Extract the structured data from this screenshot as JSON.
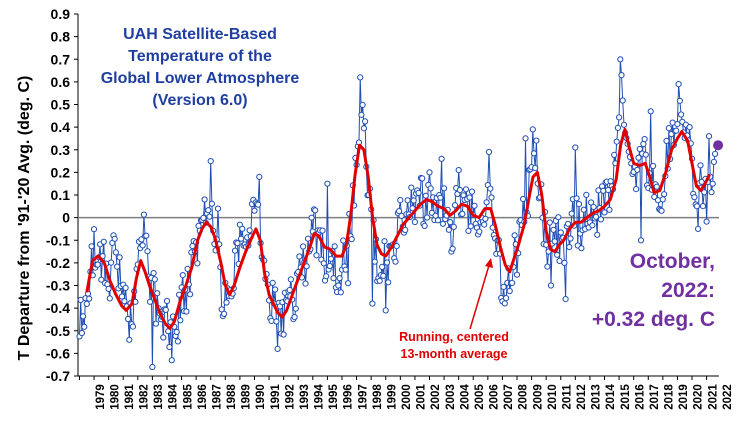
{
  "chart_data": {
    "type": "line",
    "title": [
      "UAH Satellite-Based",
      "Temperature of the",
      "Global Lower Atmosphere",
      "(Version 6.0)"
    ],
    "xlabel": "",
    "ylabel": "T Departure from '91-'20 Avg. (deg. C)",
    "ylim": [
      -0.7,
      0.9
    ],
    "xlim": [
      1978.9,
      2022.85
    ],
    "yticks": [
      -0.7,
      -0.6,
      -0.5,
      -0.4,
      -0.3,
      -0.2,
      -0.1,
      0,
      0.1,
      0.2,
      0.3,
      0.4,
      0.5,
      0.6,
      0.7,
      0.8,
      0.9
    ],
    "ytick_labels": [
      "-0.7",
      "-0.6",
      "-0.5",
      "-0.4",
      "-0.3",
      "-0.2",
      "-0.1",
      "0",
      "0.1",
      "0.2",
      "0.3",
      "0.4",
      "0.5",
      "0.6",
      "0.7",
      "0.8",
      "0.9"
    ],
    "xtick_labels": [
      "1979",
      "1980",
      "1981",
      "1982",
      "1983",
      "1984",
      "1985",
      "1986",
      "1987",
      "1988",
      "1989",
      "1990",
      "1991",
      "1992",
      "1993",
      "1994",
      "1995",
      "1996",
      "1997",
      "1998",
      "1999",
      "2000",
      "2001",
      "2002",
      "2003",
      "2004",
      "2005",
      "2006",
      "2007",
      "2008",
      "2009",
      "2010",
      "2011",
      "2012",
      "2013",
      "2014",
      "2015",
      "2016",
      "2017",
      "2018",
      "2019",
      "2020",
      "2021",
      "2022"
    ],
    "grid": false,
    "zero_line": true,
    "colors": {
      "monthly": "#1f4fb4",
      "marker_fill": "#ffffff",
      "running": "#e00000",
      "latest": "#7030a0",
      "title": "#1f3fa0",
      "zero_line": "#7f7f7f"
    },
    "monthly_anchors": [
      [
        1979.0,
        -0.45
      ],
      [
        1979.4,
        -0.38
      ],
      [
        1979.8,
        -0.2
      ],
      [
        1980.2,
        -0.1
      ],
      [
        1980.6,
        -0.2
      ],
      [
        1981.0,
        -0.28
      ],
      [
        1981.4,
        -0.15
      ],
      [
        1981.8,
        -0.25
      ],
      [
        1982.2,
        -0.38
      ],
      [
        1982.6,
        -0.5
      ],
      [
        1983.0,
        -0.2
      ],
      [
        1983.3,
        0.0
      ],
      [
        1983.7,
        -0.25
      ],
      [
        1984.1,
        -0.35
      ],
      [
        1984.6,
        -0.5
      ],
      [
        1985.0,
        -0.45
      ],
      [
        1985.5,
        -0.5
      ],
      [
        1986.0,
        -0.38
      ],
      [
        1986.5,
        -0.28
      ],
      [
        1987.0,
        -0.15
      ],
      [
        1987.5,
        -0.05
      ],
      [
        1987.8,
        0.05
      ],
      [
        1988.1,
        0.0
      ],
      [
        1988.5,
        -0.15
      ],
      [
        1988.9,
        -0.4
      ],
      [
        1989.4,
        -0.3
      ],
      [
        1989.8,
        -0.2
      ],
      [
        1990.2,
        -0.05
      ],
      [
        1990.6,
        -0.1
      ],
      [
        1991.0,
        0.05
      ],
      [
        1991.4,
        -0.05
      ],
      [
        1991.8,
        -0.25
      ],
      [
        1992.3,
        -0.4
      ],
      [
        1992.8,
        -0.45
      ],
      [
        1993.2,
        -0.42
      ],
      [
        1993.7,
        -0.35
      ],
      [
        1994.2,
        -0.25
      ],
      [
        1994.7,
        -0.15
      ],
      [
        1995.1,
        -0.05
      ],
      [
        1995.5,
        -0.1
      ],
      [
        1995.9,
        -0.2
      ],
      [
        1996.3,
        -0.15
      ],
      [
        1996.8,
        -0.25
      ],
      [
        1997.2,
        -0.15
      ],
      [
        1997.7,
        0.0
      ],
      [
        1998.0,
        0.3
      ],
      [
        1998.3,
        0.55
      ],
      [
        1998.7,
        0.25
      ],
      [
        1999.0,
        -0.05
      ],
      [
        1999.4,
        -0.2
      ],
      [
        1999.8,
        -0.15
      ],
      [
        2000.2,
        -0.2
      ],
      [
        2000.6,
        -0.12
      ],
      [
        2001.0,
        -0.02
      ],
      [
        2001.5,
        0.05
      ],
      [
        2001.9,
        0.08
      ],
      [
        2002.3,
        0.12
      ],
      [
        2002.8,
        0.05
      ],
      [
        2003.2,
        0.1
      ],
      [
        2003.6,
        0.05
      ],
      [
        2004.0,
        0.08
      ],
      [
        2004.5,
        -0.05
      ],
      [
        2004.9,
        0.05
      ],
      [
        2005.3,
        0.1
      ],
      [
        2005.8,
        0.02
      ],
      [
        2006.2,
        -0.02
      ],
      [
        2006.7,
        0.05
      ],
      [
        2007.1,
        0.15
      ],
      [
        2007.5,
        -0.05
      ],
      [
        2007.9,
        -0.25
      ],
      [
        2008.2,
        -0.32
      ],
      [
        2008.6,
        -0.2
      ],
      [
        2009.0,
        -0.15
      ],
      [
        2009.5,
        0.05
      ],
      [
        2009.9,
        0.15
      ],
      [
        2010.2,
        0.3
      ],
      [
        2010.6,
        0.12
      ],
      [
        2011.0,
        -0.1
      ],
      [
        2011.4,
        -0.15
      ],
      [
        2011.8,
        -0.1
      ],
      [
        2012.2,
        -0.15
      ],
      [
        2012.6,
        -0.05
      ],
      [
        2013.0,
        0.0
      ],
      [
        2013.5,
        -0.05
      ],
      [
        2013.9,
        0.05
      ],
      [
        2014.3,
        0.0
      ],
      [
        2014.7,
        0.05
      ],
      [
        2015.1,
        0.1
      ],
      [
        2015.5,
        0.15
      ],
      [
        2015.9,
        0.3
      ],
      [
        2016.2,
        0.65
      ],
      [
        2016.5,
        0.35
      ],
      [
        2016.9,
        0.25
      ],
      [
        2017.2,
        0.2
      ],
      [
        2017.6,
        0.3
      ],
      [
        2018.0,
        0.2
      ],
      [
        2018.4,
        0.12
      ],
      [
        2018.8,
        0.1
      ],
      [
        2019.2,
        0.25
      ],
      [
        2019.6,
        0.4
      ],
      [
        2019.9,
        0.35
      ],
      [
        2020.2,
        0.5
      ],
      [
        2020.5,
        0.38
      ],
      [
        2020.9,
        0.35
      ],
      [
        2021.2,
        0.05
      ],
      [
        2021.5,
        0.15
      ],
      [
        2021.8,
        0.12
      ],
      [
        2022.1,
        0.05
      ],
      [
        2022.5,
        0.25
      ],
      [
        2022.75,
        0.3
      ]
    ],
    "spikes": [
      [
        1982.4,
        -0.54
      ],
      [
        1984.0,
        -0.66
      ],
      [
        1985.3,
        -0.63
      ],
      [
        1988.0,
        0.25
      ],
      [
        1988.5,
        0.04
      ],
      [
        1991.3,
        0.18
      ],
      [
        1992.6,
        -0.58
      ],
      [
        1996.0,
        0.15
      ],
      [
        1997.4,
        -0.29
      ],
      [
        1998.25,
        0.62
      ],
      [
        1999.1,
        -0.38
      ],
      [
        2000.0,
        -0.41
      ],
      [
        2003.0,
        0.2
      ],
      [
        2003.8,
        0.26
      ],
      [
        2004.5,
        -0.15
      ],
      [
        2005.0,
        0.21
      ],
      [
        2006.5,
        -0.02
      ],
      [
        2007.05,
        0.29
      ],
      [
        2008.0,
        -0.37
      ],
      [
        2009.6,
        0.35
      ],
      [
        2010.1,
        0.39
      ],
      [
        2011.3,
        -0.3
      ],
      [
        2012.3,
        -0.36
      ],
      [
        2013.0,
        0.31
      ],
      [
        2016.1,
        0.7
      ],
      [
        2016.2,
        0.63
      ],
      [
        2017.5,
        -0.1
      ],
      [
        2018.2,
        0.47
      ],
      [
        2018.9,
        0.03
      ],
      [
        2020.1,
        0.59
      ],
      [
        2021.4,
        -0.05
      ],
      [
        2022.2,
        0.36
      ]
    ],
    "running_mean": [
      [
        1979.5,
        -0.33
      ],
      [
        1979.9,
        -0.19
      ],
      [
        1980.3,
        -0.17
      ],
      [
        1980.7,
        -0.2
      ],
      [
        1981.1,
        -0.28
      ],
      [
        1981.5,
        -0.34
      ],
      [
        1981.9,
        -0.39
      ],
      [
        1982.2,
        -0.41
      ],
      [
        1982.6,
        -0.38
      ],
      [
        1982.9,
        -0.27
      ],
      [
        1983.2,
        -0.19
      ],
      [
        1983.5,
        -0.24
      ],
      [
        1983.8,
        -0.3
      ],
      [
        1984.1,
        -0.35
      ],
      [
        1984.5,
        -0.42
      ],
      [
        1984.9,
        -0.47
      ],
      [
        1985.2,
        -0.49
      ],
      [
        1985.5,
        -0.46
      ],
      [
        1985.9,
        -0.37
      ],
      [
        1986.3,
        -0.3
      ],
      [
        1986.7,
        -0.22
      ],
      [
        1987.1,
        -0.1
      ],
      [
        1987.4,
        -0.05
      ],
      [
        1987.7,
        -0.02
      ],
      [
        1988.0,
        -0.04
      ],
      [
        1988.3,
        -0.09
      ],
      [
        1988.7,
        -0.2
      ],
      [
        1989.0,
        -0.3
      ],
      [
        1989.3,
        -0.34
      ],
      [
        1989.6,
        -0.3
      ],
      [
        1990.0,
        -0.22
      ],
      [
        1990.4,
        -0.15
      ],
      [
        1990.8,
        -0.09
      ],
      [
        1991.1,
        -0.05
      ],
      [
        1991.4,
        -0.1
      ],
      [
        1991.7,
        -0.25
      ],
      [
        1992.0,
        -0.34
      ],
      [
        1992.3,
        -0.38
      ],
      [
        1992.6,
        -0.42
      ],
      [
        1992.9,
        -0.44
      ],
      [
        1993.2,
        -0.41
      ],
      [
        1993.6,
        -0.34
      ],
      [
        1994.0,
        -0.27
      ],
      [
        1994.4,
        -0.2
      ],
      [
        1994.8,
        -0.13
      ],
      [
        1995.1,
        -0.07
      ],
      [
        1995.4,
        -0.08
      ],
      [
        1995.8,
        -0.13
      ],
      [
        1996.2,
        -0.14
      ],
      [
        1996.6,
        -0.17
      ],
      [
        1997.0,
        -0.17
      ],
      [
        1997.3,
        -0.12
      ],
      [
        1997.6,
        0.01
      ],
      [
        1997.9,
        0.19
      ],
      [
        1998.2,
        0.32
      ],
      [
        1998.5,
        0.3
      ],
      [
        1998.8,
        0.18
      ],
      [
        1999.1,
        0.0
      ],
      [
        1999.4,
        -0.12
      ],
      [
        1999.7,
        -0.16
      ],
      [
        2000.0,
        -0.17
      ],
      [
        2000.4,
        -0.13
      ],
      [
        2000.8,
        -0.08
      ],
      [
        2001.2,
        -0.03
      ],
      [
        2001.6,
        0.0
      ],
      [
        2002.0,
        0.03
      ],
      [
        2002.4,
        0.06
      ],
      [
        2002.8,
        0.08
      ],
      [
        2003.2,
        0.07
      ],
      [
        2003.6,
        0.05
      ],
      [
        2004.0,
        0.04
      ],
      [
        2004.4,
        0.01
      ],
      [
        2004.8,
        0.03
      ],
      [
        2005.2,
        0.06
      ],
      [
        2005.6,
        0.05
      ],
      [
        2006.0,
        0.01
      ],
      [
        2006.4,
        0.0
      ],
      [
        2006.8,
        0.04
      ],
      [
        2007.2,
        0.04
      ],
      [
        2007.5,
        -0.03
      ],
      [
        2007.9,
        -0.14
      ],
      [
        2008.2,
        -0.21
      ],
      [
        2008.5,
        -0.24
      ],
      [
        2008.8,
        -0.18
      ],
      [
        2009.1,
        -0.12
      ],
      [
        2009.5,
        -0.03
      ],
      [
        2009.8,
        0.08
      ],
      [
        2010.1,
        0.18
      ],
      [
        2010.4,
        0.2
      ],
      [
        2010.7,
        0.1
      ],
      [
        2011.0,
        -0.06
      ],
      [
        2011.3,
        -0.14
      ],
      [
        2011.6,
        -0.15
      ],
      [
        2011.9,
        -0.12
      ],
      [
        2012.2,
        -0.1
      ],
      [
        2012.6,
        -0.05
      ],
      [
        2013.0,
        -0.02
      ],
      [
        2013.4,
        -0.02
      ],
      [
        2013.8,
        0.0
      ],
      [
        2014.2,
        0.02
      ],
      [
        2014.6,
        0.03
      ],
      [
        2015.0,
        0.05
      ],
      [
        2015.4,
        0.08
      ],
      [
        2015.8,
        0.17
      ],
      [
        2016.1,
        0.32
      ],
      [
        2016.4,
        0.39
      ],
      [
        2016.7,
        0.31
      ],
      [
        2017.0,
        0.24
      ],
      [
        2017.4,
        0.23
      ],
      [
        2017.8,
        0.24
      ],
      [
        2018.1,
        0.18
      ],
      [
        2018.4,
        0.11
      ],
      [
        2018.8,
        0.12
      ],
      [
        2019.2,
        0.2
      ],
      [
        2019.6,
        0.3
      ],
      [
        2020.0,
        0.35
      ],
      [
        2020.3,
        0.38
      ],
      [
        2020.7,
        0.34
      ],
      [
        2021.0,
        0.24
      ],
      [
        2021.3,
        0.14
      ],
      [
        2021.6,
        0.12
      ],
      [
        2021.9,
        0.15
      ],
      [
        2022.2,
        0.19
      ]
    ],
    "latest_point": {
      "x": 2022.79,
      "y": 0.32
    },
    "annotations": {
      "running_label": [
        "Running, centered",
        "13-month average"
      ],
      "latest_label": [
        "October,",
        "2022:",
        "+0.32 deg. C"
      ]
    }
  }
}
